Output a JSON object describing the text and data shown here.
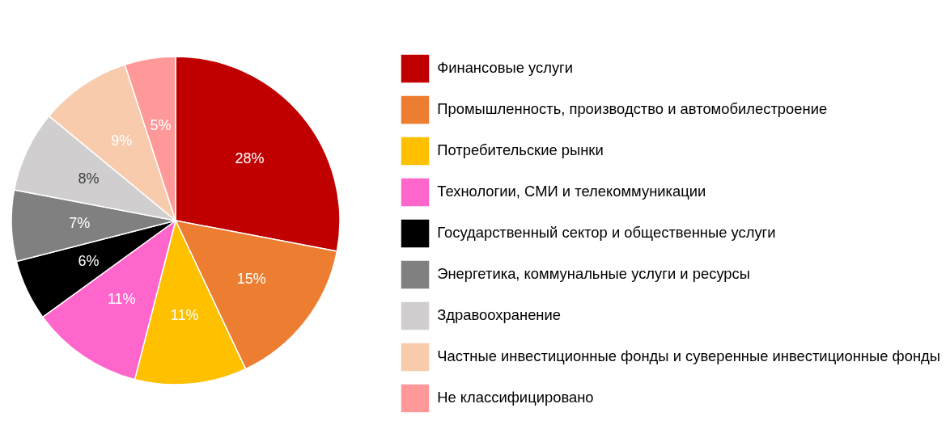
{
  "chart_data": {
    "type": "pie",
    "categories": [
      "Финансовые услуги",
      "Промышленность, производство и автомобилестроение",
      "Потребительские рынки",
      "Технологии, СМИ и телекоммуникации",
      "Государственный сектор и общественные услуги",
      "Энергетика, коммунальные услуги и ресурсы",
      "Здравоохранение",
      "Частные инвестиционные фонды и суверенные инвестиционные фонды",
      "Не классифицировано"
    ],
    "values": [
      28,
      15,
      11,
      11,
      6,
      7,
      8,
      9,
      5
    ],
    "colors": [
      "#c00000",
      "#ed7d31",
      "#ffc000",
      "#ff66cc",
      "#000000",
      "#808080",
      "#d0cece",
      "#f8cbad",
      "#ff9999"
    ],
    "value_labels": [
      "28%",
      "15%",
      "11%",
      "11%",
      "6%",
      "7%",
      "8%",
      "9%",
      "5%"
    ],
    "legend": "right"
  }
}
